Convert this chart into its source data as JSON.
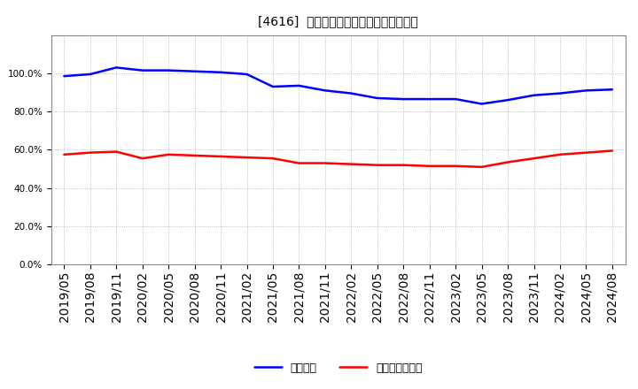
{
  "title": "[4616]  固定比率、固定長期適合率の推移",
  "x_labels": [
    "2019/05",
    "2019/08",
    "2019/11",
    "2020/02",
    "2020/05",
    "2020/08",
    "2020/11",
    "2021/02",
    "2021/05",
    "2021/08",
    "2021/11",
    "2022/02",
    "2022/05",
    "2022/08",
    "2022/11",
    "2023/02",
    "2023/05",
    "2023/08",
    "2023/11",
    "2024/02",
    "2024/05",
    "2024/08"
  ],
  "fixed_ratio": [
    98.5,
    99.5,
    103.0,
    101.5,
    101.5,
    101.0,
    100.5,
    99.5,
    93.0,
    93.5,
    91.0,
    89.5,
    87.0,
    86.5,
    86.5,
    86.5,
    84.0,
    86.0,
    88.5,
    89.5,
    91.0,
    91.5
  ],
  "fixed_long_ratio": [
    57.5,
    58.5,
    59.0,
    55.5,
    57.5,
    57.0,
    56.5,
    56.0,
    55.5,
    53.0,
    53.0,
    52.5,
    52.0,
    52.0,
    51.5,
    51.5,
    51.0,
    53.5,
    55.5,
    57.5,
    58.5,
    59.5
  ],
  "line1_color": "#0000ff",
  "line2_color": "#ff0000",
  "legend1": "固定比率",
  "legend2": "固定長期適合率",
  "bg_color": "#ffffff",
  "grid_color": "#999999",
  "title_color": "#000000",
  "title_fontsize": 11,
  "tick_fontsize": 7.5,
  "legend_fontsize": 9,
  "line_width": 1.8
}
